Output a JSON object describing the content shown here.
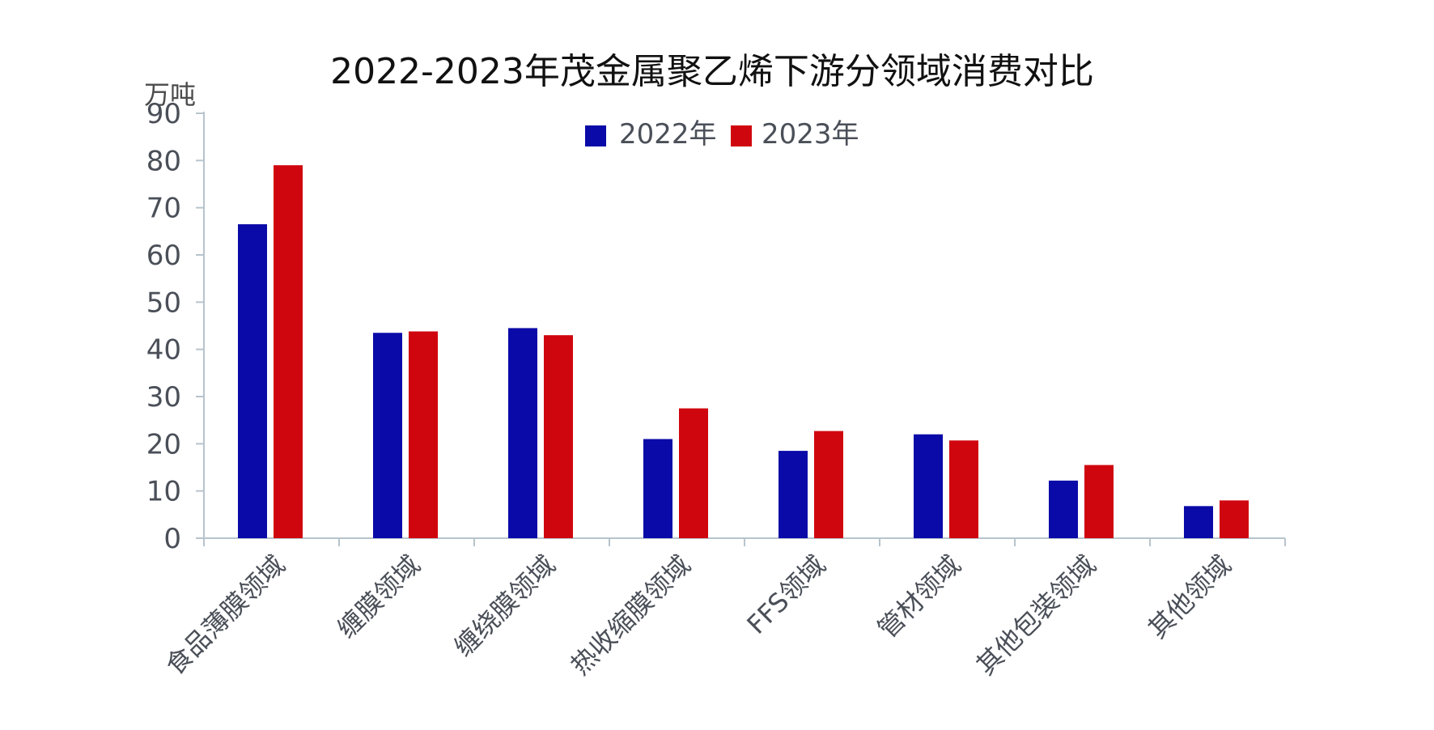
{
  "chart_data": {
    "type": "bar",
    "title": "2022-2023年茂金属聚乙烯下游分领域消费对比",
    "ylabel": "万吨",
    "xlabel": "",
    "ylim": [
      0,
      90
    ],
    "yticks": [
      0,
      10,
      20,
      30,
      40,
      50,
      60,
      70,
      80,
      90
    ],
    "grid": false,
    "legend_position": "top-center",
    "categories": [
      "食品薄膜领域",
      "缠膜领域",
      "缠绕膜领域",
      "热收缩膜领域",
      "FFS领域",
      "管材领域",
      "其他包装领域",
      "其他领域"
    ],
    "series": [
      {
        "name": "2022年",
        "color": "#0a0aa8",
        "values": [
          66.5,
          43.5,
          44.5,
          21,
          18.5,
          22,
          12.2,
          6.8
        ]
      },
      {
        "name": "2023年",
        "color": "#d0060f",
        "values": [
          79,
          43.8,
          43,
          27.5,
          22.7,
          20.7,
          15.5,
          8
        ]
      }
    ]
  }
}
